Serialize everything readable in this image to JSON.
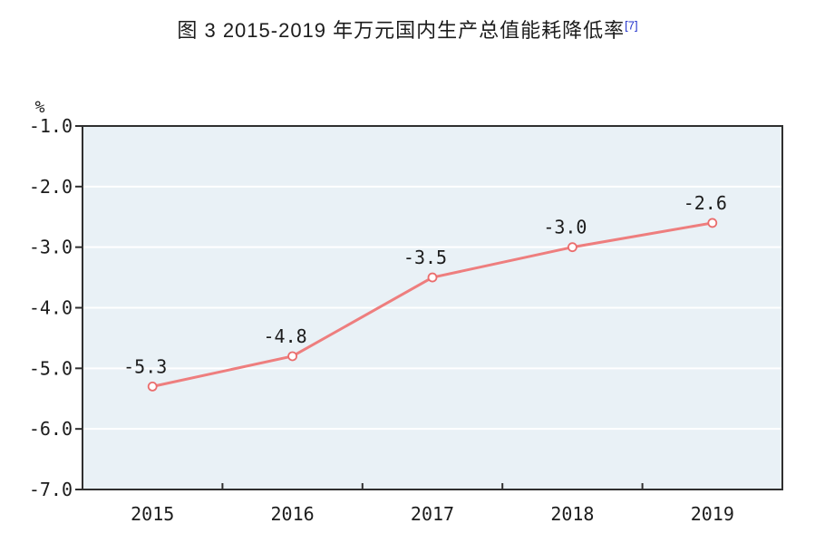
{
  "title": {
    "text": "图 3  2015-2019 年万元国内生产总值能耗降低率",
    "footnote": "[7]"
  },
  "chart_data": {
    "type": "line",
    "title": "图 3  2015-2019 年万元国内生产总值能耗降低率[7]",
    "categories": [
      "2015",
      "2016",
      "2017",
      "2018",
      "2019"
    ],
    "series": [
      {
        "name": "万元国内生产总值能耗降低率",
        "values": [
          -5.3,
          -4.8,
          -3.5,
          -3.0,
          -2.6
        ],
        "labels": [
          "-5.3",
          "-4.8",
          "-3.5",
          "-3.0",
          "-2.6"
        ]
      }
    ],
    "xlabel": "",
    "ylabel": "",
    "y_unit_label": "%",
    "ylim": [
      -7.0,
      -1.0
    ],
    "yticks": [
      -1.0,
      -2.0,
      -3.0,
      -4.0,
      -5.0,
      -6.0,
      -7.0
    ],
    "ytick_labels": [
      "-1.0",
      "-2.0",
      "-3.0",
      "-4.0",
      "-5.0",
      "-6.0",
      "-7.0"
    ],
    "grid": true,
    "legend": false,
    "colors": {
      "line": "#ee7e7e",
      "marker_stroke": "#ea6d6d",
      "marker_fill": "#ffffff",
      "plot_bg": "#e9f1f6",
      "gridline": "#ffffff",
      "border": "#2f2f2f",
      "text": "#1c1c1c",
      "footnote": "#2333cc"
    }
  }
}
